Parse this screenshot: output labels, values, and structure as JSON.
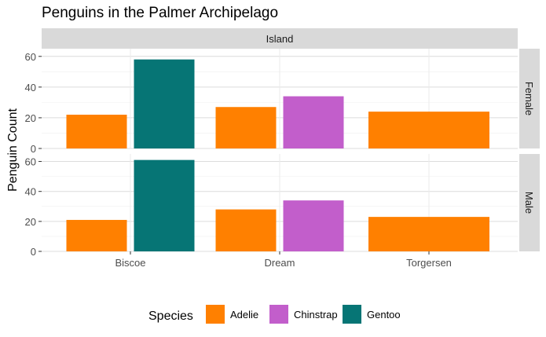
{
  "chart_data": {
    "type": "bar",
    "title": "Penguins in the Palmer Archipelago",
    "xlabel": "",
    "ylabel": "Penguin Count",
    "facet_column_label": "Island",
    "facet_rows": [
      "Female",
      "Male"
    ],
    "categories": [
      "Biscoe",
      "Dream",
      "Torgersen"
    ],
    "ylim": [
      0,
      65
    ],
    "yticks": [
      0,
      20,
      40,
      60
    ],
    "grid": true,
    "legend_position": "bottom",
    "legend_title": "Species",
    "series": [
      {
        "name": "Adelie",
        "color": "#FF8000"
      },
      {
        "name": "Chinstrap",
        "color": "#C25ECB"
      },
      {
        "name": "Gentoo",
        "color": "#067575"
      }
    ],
    "panels": [
      {
        "facet": "Female",
        "bars": [
          {
            "category": "Biscoe",
            "species": "Adelie",
            "value": 22
          },
          {
            "category": "Biscoe",
            "species": "Gentoo",
            "value": 58
          },
          {
            "category": "Dream",
            "species": "Adelie",
            "value": 27
          },
          {
            "category": "Dream",
            "species": "Chinstrap",
            "value": 34
          },
          {
            "category": "Torgersen",
            "species": "Adelie",
            "value": 24
          }
        ]
      },
      {
        "facet": "Male",
        "bars": [
          {
            "category": "Biscoe",
            "species": "Adelie",
            "value": 21
          },
          {
            "category": "Biscoe",
            "species": "Gentoo",
            "value": 61
          },
          {
            "category": "Dream",
            "species": "Adelie",
            "value": 28
          },
          {
            "category": "Dream",
            "species": "Chinstrap",
            "value": 34
          },
          {
            "category": "Torgersen",
            "species": "Adelie",
            "value": 23
          }
        ]
      }
    ]
  }
}
